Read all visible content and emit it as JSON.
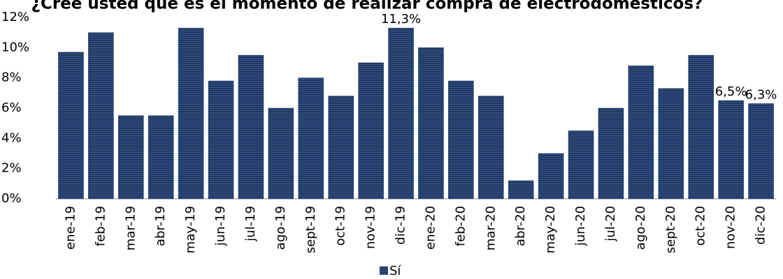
{
  "chart_data": {
    "type": "bar",
    "title": "¿Cree usted que es el momento de realizar compra de electrodomésticos?",
    "categories": [
      "ene-19",
      "feb-19",
      "mar-19",
      "abr-19",
      "may-19",
      "jun-19",
      "jul-19",
      "ago-19",
      "sept-19",
      "oct-19",
      "nov-19",
      "dic-19",
      "ene-20",
      "feb-20",
      "mar-20",
      "abr-20",
      "may-20",
      "jun-20",
      "jul-20",
      "ago-20",
      "sept-20",
      "oct-20",
      "nov-20",
      "dic-20"
    ],
    "series": [
      {
        "name": "Sí",
        "color": "#1f3864",
        "values": [
          9.7,
          11.0,
          5.5,
          5.5,
          11.3,
          7.8,
          9.5,
          6.0,
          8.0,
          6.8,
          9.0,
          11.3,
          10.0,
          7.8,
          6.8,
          1.2,
          3.0,
          4.5,
          6.0,
          8.8,
          7.3,
          9.5,
          6.5,
          6.3
        ],
        "value_labels": [
          null,
          null,
          null,
          null,
          null,
          null,
          null,
          null,
          null,
          null,
          null,
          "11,3%",
          null,
          null,
          null,
          null,
          null,
          null,
          null,
          null,
          null,
          null,
          "6,5%",
          "6,3%"
        ]
      }
    ],
    "ylim": [
      0,
      12
    ],
    "yticks": [
      {
        "value": 0,
        "label": "0%"
      },
      {
        "value": 2,
        "label": "2%"
      },
      {
        "value": 4,
        "label": "4%"
      },
      {
        "value": 6,
        "label": "6%"
      },
      {
        "value": 8,
        "label": "8%"
      },
      {
        "value": 10,
        "label": "10%"
      },
      {
        "value": 12,
        "label": "12%"
      }
    ],
    "grid": false,
    "legend": "bottom"
  }
}
